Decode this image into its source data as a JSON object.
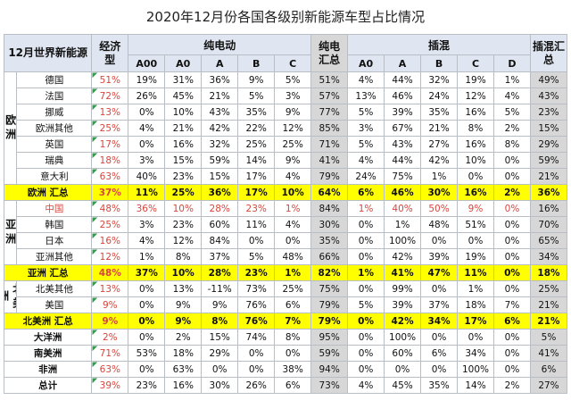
{
  "title": "2020年12月份各国各级别新能源车型占比情况",
  "header": {
    "corner": "12月世界新能源",
    "share": "经济型",
    "bev": "纯电动",
    "bev_total": "纯电汇总",
    "phev": "插混",
    "phev_total": "插混汇总",
    "bev_classes": [
      "A00",
      "A0",
      "A",
      "B",
      "C"
    ],
    "phev_classes": [
      "A0",
      "A",
      "B",
      "C",
      "D"
    ]
  },
  "groups": [
    {
      "region": "欧洲",
      "rows": [
        {
          "name": "德国",
          "share": "51%",
          "bev": [
            "19%",
            "31%",
            "36%",
            "9%",
            "5%"
          ],
          "bev_total": "51%",
          "phev": [
            "4%",
            "44%",
            "32%",
            "19%",
            "1%"
          ],
          "phev_total": "49%"
        },
        {
          "name": "法国",
          "share": "72%",
          "bev": [
            "26%",
            "45%",
            "21%",
            "5%",
            "3%"
          ],
          "bev_total": "57%",
          "phev": [
            "13%",
            "46%",
            "24%",
            "12%",
            "4%"
          ],
          "phev_total": "43%"
        },
        {
          "name": "挪威",
          "share": "13%",
          "bev": [
            "0%",
            "10%",
            "43%",
            "35%",
            "9%"
          ],
          "bev_total": "77%",
          "phev": [
            "5%",
            "39%",
            "35%",
            "16%",
            "5%"
          ],
          "phev_total": "23%"
        },
        {
          "name": "欧洲其他",
          "share": "25%",
          "bev": [
            "4%",
            "21%",
            "42%",
            "22%",
            "12%"
          ],
          "bev_total": "85%",
          "phev": [
            "3%",
            "67%",
            "21%",
            "8%",
            "2%"
          ],
          "phev_total": "15%"
        },
        {
          "name": "英国",
          "share": "17%",
          "bev": [
            "0%",
            "16%",
            "32%",
            "25%",
            "25%"
          ],
          "bev_total": "71%",
          "phev": [
            "5%",
            "43%",
            "27%",
            "16%",
            "8%"
          ],
          "phev_total": "29%"
        },
        {
          "name": "瑞典",
          "share": "18%",
          "bev": [
            "3%",
            "15%",
            "59%",
            "14%",
            "9%"
          ],
          "bev_total": "41%",
          "phev": [
            "4%",
            "44%",
            "42%",
            "10%",
            "0%"
          ],
          "phev_total": "59%"
        },
        {
          "name": "意大利",
          "share": "63%",
          "bev": [
            "40%",
            "23%",
            "15%",
            "17%",
            "4%"
          ],
          "bev_total": "79%",
          "phev": [
            "24%",
            "75%",
            "1%",
            "0%",
            "0%"
          ],
          "phev_total": "21%"
        }
      ],
      "summary": {
        "name": "欧洲 汇总",
        "share": "37%",
        "bev": [
          "11%",
          "25%",
          "36%",
          "17%",
          "10%"
        ],
        "bev_total": "64%",
        "phev": [
          "6%",
          "46%",
          "30%",
          "16%",
          "2%"
        ],
        "phev_total": "36%"
      }
    },
    {
      "region": "亚洲",
      "rows": [
        {
          "name": "中国",
          "share": "48%",
          "bev": [
            "36%",
            "10%",
            "28%",
            "23%",
            "1%"
          ],
          "bev_total": "84%",
          "phev": [
            "1%",
            "40%",
            "50%",
            "9%",
            "0%"
          ],
          "phev_total": "16%",
          "highlight": true
        },
        {
          "name": "韩国",
          "share": "25%",
          "bev": [
            "3%",
            "23%",
            "60%",
            "11%",
            "4%"
          ],
          "bev_total": "30%",
          "phev": [
            "0%",
            "1%",
            "48%",
            "51%",
            "0%"
          ],
          "phev_total": "70%"
        },
        {
          "name": "日本",
          "share": "16%",
          "bev": [
            "4%",
            "12%",
            "84%",
            "0%",
            "0%"
          ],
          "bev_total": "35%",
          "phev": [
            "0%",
            "100%",
            "0%",
            "0%",
            "0%"
          ],
          "phev_total": "65%"
        },
        {
          "name": "亚洲其他",
          "share": "12%",
          "bev": [
            "1%",
            "8%",
            "37%",
            "5%",
            "48%"
          ],
          "bev_total": "66%",
          "phev": [
            "0%",
            "42%",
            "39%",
            "19%",
            "0%"
          ],
          "phev_total": "34%"
        }
      ],
      "summary": {
        "name": "亚洲 汇总",
        "share": "48%",
        "bev": [
          "37%",
          "10%",
          "28%",
          "23%",
          "1%"
        ],
        "bev_total": "82%",
        "phev": [
          "1%",
          "41%",
          "47%",
          "11%",
          "0%"
        ],
        "phev_total": "18%"
      }
    },
    {
      "region": "北美洲",
      "rows": [
        {
          "name": "北美其他",
          "share": "13%",
          "bev": [
            "0%",
            "13%",
            "-11%",
            "73%",
            "25%"
          ],
          "bev_total": "75%",
          "phev": [
            "0%",
            "99%",
            "0%",
            "1%",
            "0%"
          ],
          "phev_total": "25%"
        },
        {
          "name": "美国",
          "share": "9%",
          "bev": [
            "0%",
            "9%",
            "9%",
            "76%",
            "6%"
          ],
          "bev_total": "79%",
          "phev": [
            "5%",
            "39%",
            "37%",
            "18%",
            "7%"
          ],
          "phev_total": "21%"
        }
      ],
      "summary": {
        "name": "北美洲 汇总",
        "share": "9%",
        "bev": [
          "0%",
          "9%",
          "8%",
          "76%",
          "7%"
        ],
        "bev_total": "79%",
        "phev": [
          "0%",
          "42%",
          "34%",
          "17%",
          "6%"
        ],
        "phev_total": "21%"
      }
    }
  ],
  "others": [
    {
      "name": "大洋洲",
      "share": "2%",
      "bev": [
        "0%",
        "2%",
        "15%",
        "74%",
        "8%"
      ],
      "bev_total": "95%",
      "phev": [
        "0%",
        "100%",
        "0%",
        "0%",
        "0%"
      ],
      "phev_total": "5%"
    },
    {
      "name": "南美洲",
      "share": "71%",
      "bev": [
        "53%",
        "18%",
        "29%",
        "0%",
        "0%"
      ],
      "bev_total": "59%",
      "phev": [
        "0%",
        "60%",
        "6%",
        "34%",
        "0%"
      ],
      "phev_total": "41%"
    },
    {
      "name": "非洲",
      "share": "63%",
      "bev": [
        "0%",
        "63%",
        "0%",
        "0%",
        "38%"
      ],
      "bev_total": "94%",
      "phev": [
        "0%",
        "0%",
        "0%",
        "100%",
        "0%"
      ],
      "phev_total": "6%"
    }
  ],
  "total": {
    "name": "总计",
    "share": "39%",
    "bev": [
      "23%",
      "16%",
      "30%",
      "26%",
      "6%"
    ],
    "bev_total": "73%",
    "phev": [
      "4%",
      "45%",
      "35%",
      "14%",
      "2%"
    ],
    "phev_total": "27%"
  }
}
